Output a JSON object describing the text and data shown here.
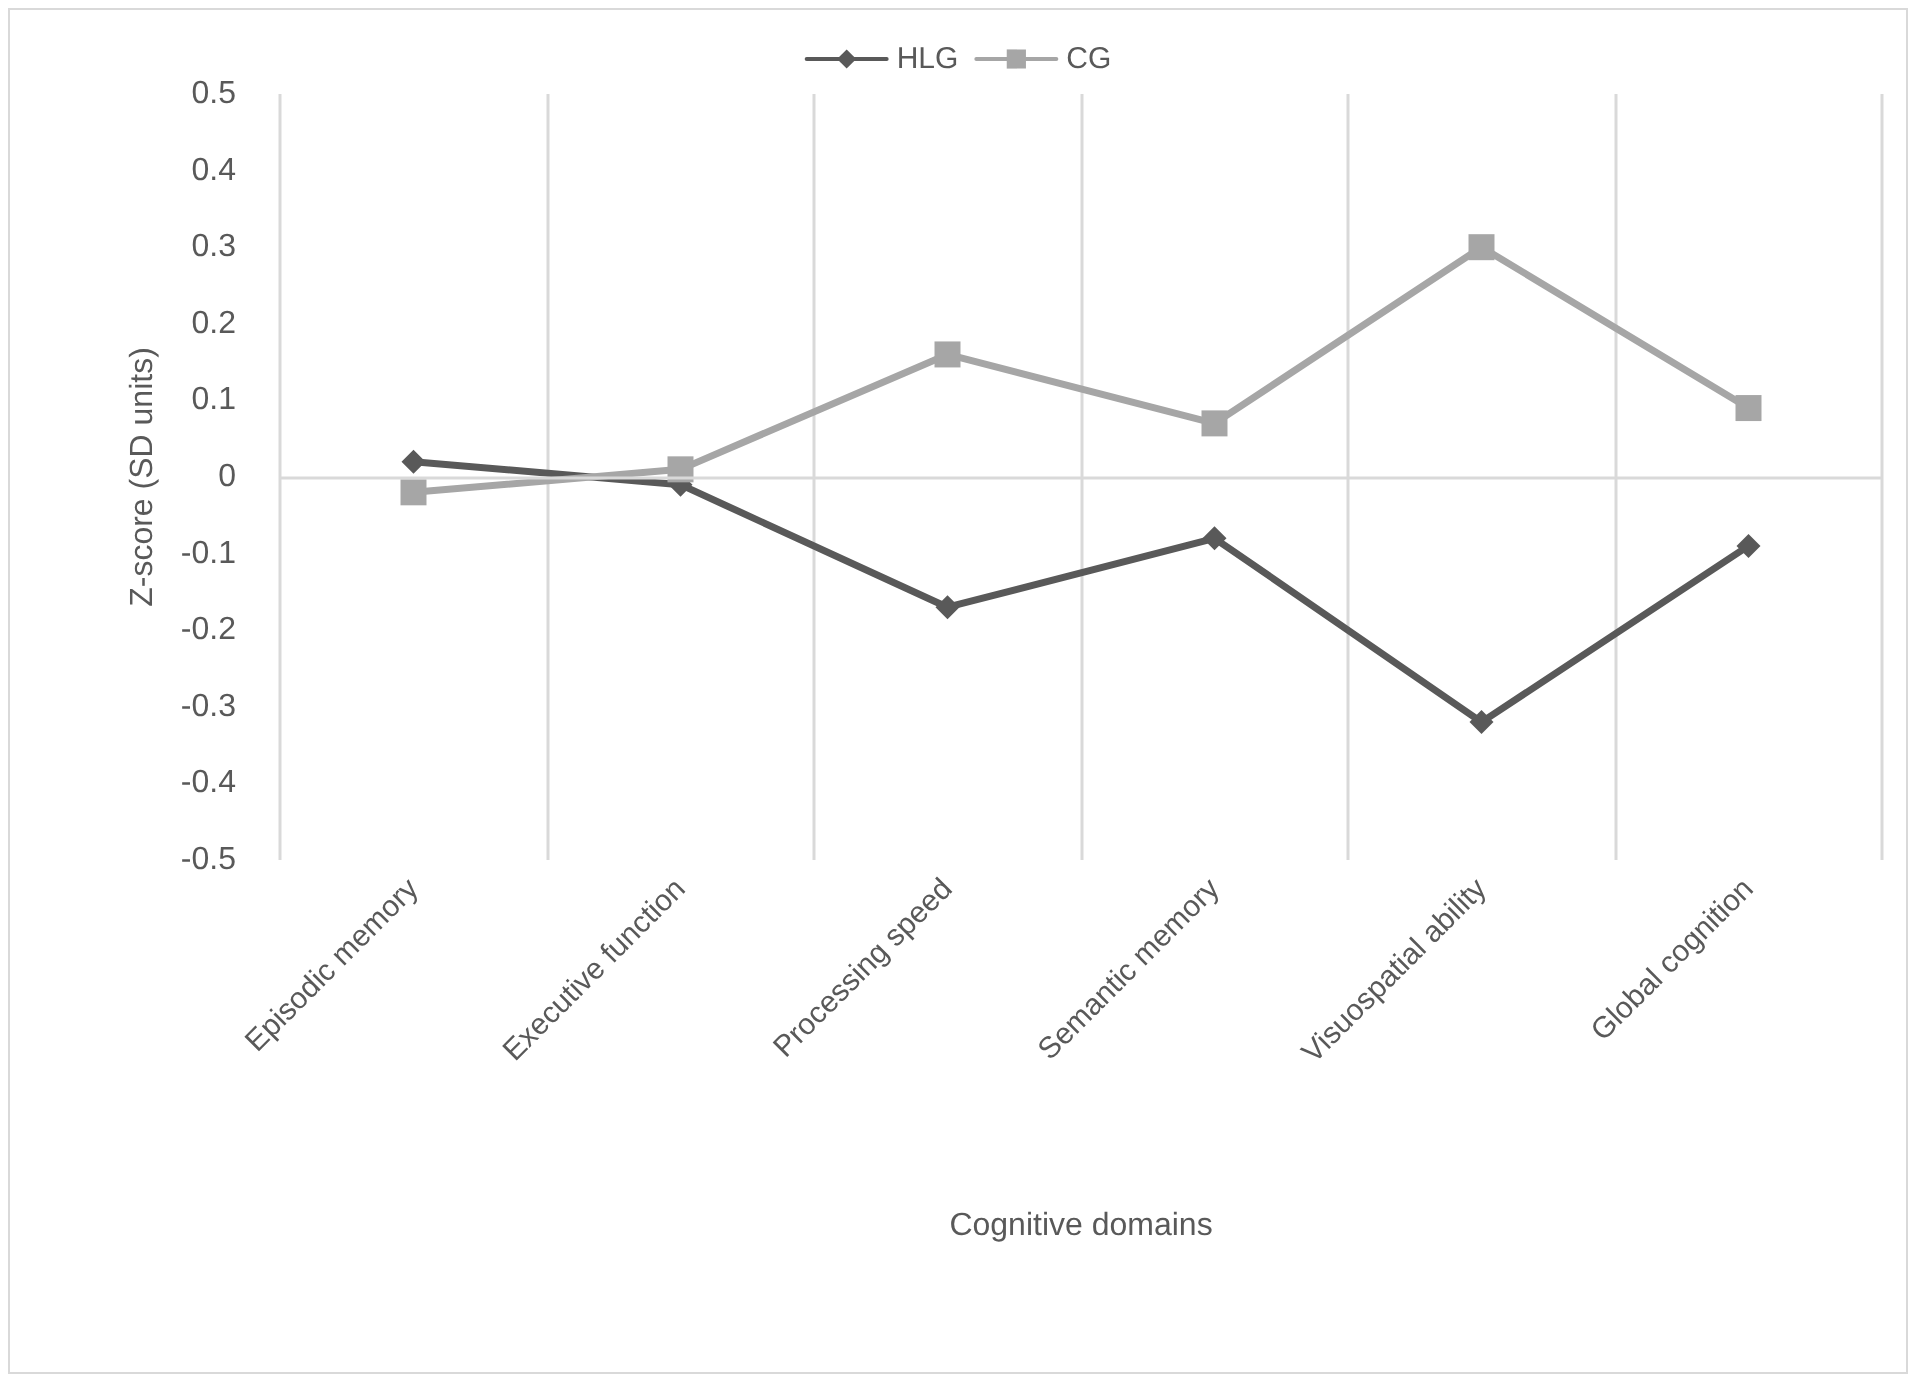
{
  "chart_data": {
    "type": "line",
    "xlabel": "Cognitive domains",
    "ylabel": "Z-score (SD units)",
    "categories": [
      "Episodic memory",
      "Executive function",
      "Processing speed",
      "Semantic memory",
      "Visuospatial ability",
      "Global cognition"
    ],
    "series": [
      {
        "name": "HLG",
        "color": "#595959",
        "marker": "diamond",
        "values": [
          0.02,
          -0.01,
          -0.17,
          -0.08,
          -0.32,
          -0.09
        ]
      },
      {
        "name": "CG",
        "color": "#a6a6a6",
        "marker": "square",
        "values": [
          -0.02,
          0.01,
          0.16,
          0.07,
          0.3,
          0.09
        ]
      }
    ],
    "ylim": [
      -0.5,
      0.5
    ],
    "yticks": [
      -0.5,
      -0.4,
      -0.3,
      -0.2,
      -0.1,
      0,
      0.1,
      0.2,
      0.3,
      0.4,
      0.5
    ],
    "ref_lines": [
      {
        "axis": "y",
        "value": 0,
        "color": "#d9d9d9"
      }
    ],
    "grid": "x",
    "legend": "top",
    "line_style": "solid"
  }
}
